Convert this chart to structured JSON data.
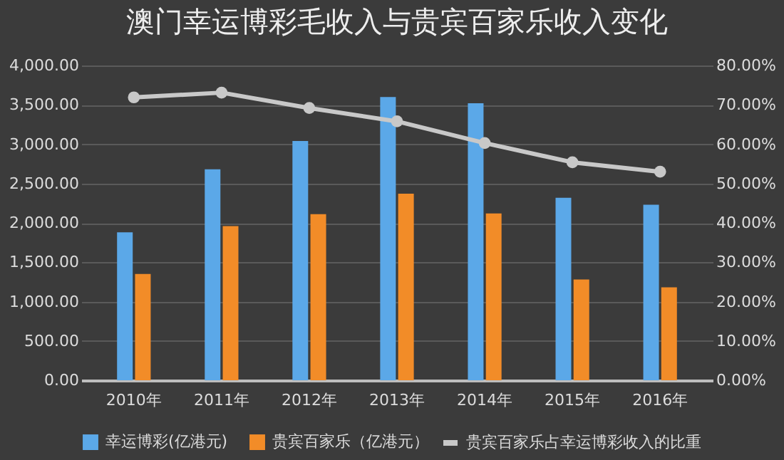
{
  "chart_data": {
    "type": "bar",
    "title": "澳门幸运博彩毛收入与贵宾百家乐收入变化",
    "categories": [
      "2010年",
      "2011年",
      "2012年",
      "2013年",
      "2014年",
      "2015年",
      "2016年"
    ],
    "series": [
      {
        "name": "幸运博彩(亿港元)",
        "color": "#5ba8e8",
        "values": [
          1880,
          2680,
          3040,
          3600,
          3520,
          2320,
          2230
        ]
      },
      {
        "name": "贵宾百家乐（亿港元）",
        "color": "#f28c28",
        "values": [
          1350,
          1960,
          2110,
          2370,
          2120,
          1280,
          1180
        ]
      },
      {
        "name": "贵宾百家乐占幸运博彩收入的比重",
        "type": "line",
        "axis": "y2",
        "color": "#c8c8c8",
        "marker": "circle",
        "values": [
          71.9,
          73.1,
          69.2,
          65.8,
          60.3,
          55.4,
          53.0
        ]
      }
    ],
    "ylim": [
      0,
      4000
    ],
    "yticks": [
      {
        "value": 0,
        "label": "0.00"
      },
      {
        "value": 500,
        "label": "500.00"
      },
      {
        "value": 1000,
        "label": "1,000.00"
      },
      {
        "value": 1500,
        "label": "1,500.00"
      },
      {
        "value": 2000,
        "label": "2,000.00"
      },
      {
        "value": 2500,
        "label": "2,500.00"
      },
      {
        "value": 3000,
        "label": "3,000.00"
      },
      {
        "value": 3500,
        "label": "3,500.00"
      },
      {
        "value": 4000,
        "label": "4,000.00"
      }
    ],
    "y2lim": [
      0,
      80
    ],
    "y2ticks": [
      {
        "value": 0,
        "label": "0.00%"
      },
      {
        "value": 10,
        "label": "10.00%"
      },
      {
        "value": 20,
        "label": "20.00%"
      },
      {
        "value": 30,
        "label": "30.00%"
      },
      {
        "value": 40,
        "label": "40.00%"
      },
      {
        "value": 50,
        "label": "50.00%"
      },
      {
        "value": 60,
        "label": "60.00%"
      },
      {
        "value": 70,
        "label": "70.00%"
      },
      {
        "value": 80,
        "label": "80.00%"
      }
    ],
    "grid": "y",
    "legend": "bottom"
  }
}
